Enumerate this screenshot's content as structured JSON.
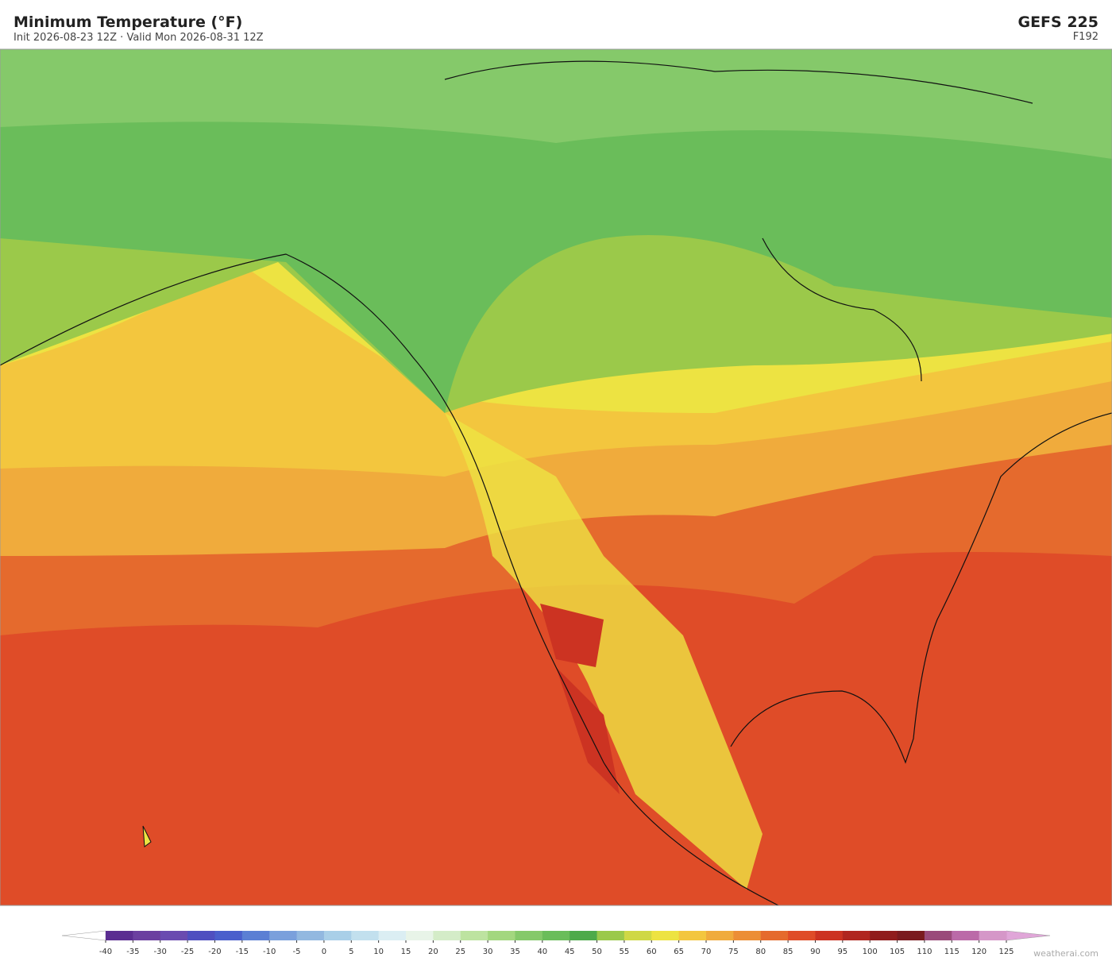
{
  "header": {
    "title": "Minimum Temperature  (°F)",
    "subtitle": "Init 2026-08-23 12Z  ·  Valid Mon 2026-08-31 12Z",
    "model": "GEFS  225",
    "forecast_hour": "F192"
  },
  "colorbar": {
    "ticks": [
      -40,
      -35,
      -30,
      -25,
      -20,
      -15,
      -10,
      -5,
      0,
      5,
      10,
      15,
      20,
      25,
      30,
      35,
      40,
      45,
      50,
      55,
      60,
      65,
      70,
      75,
      80,
      85,
      90,
      95,
      100,
      105,
      110,
      115,
      120,
      125
    ],
    "colors": [
      "#5b2d91",
      "#6b3fa0",
      "#6a4bb0",
      "#4f4fc0",
      "#4a5fcc",
      "#5b7fd4",
      "#7aa0dc",
      "#92b8e0",
      "#a9cfe8",
      "#c2e0ee",
      "#dbeef3",
      "#e8f4e8",
      "#d4ecc8",
      "#bde3a0",
      "#a3d77f",
      "#85c96a",
      "#6abd5a",
      "#4eaa4a",
      "#9bc94a",
      "#cfd845",
      "#ede342",
      "#f3c63e",
      "#f0ab3c",
      "#ec8e35",
      "#e56a2d",
      "#df4c28",
      "#cc3322",
      "#b02620",
      "#901c1c",
      "#7a1a1e",
      "#9a4a7a",
      "#bb6aa8",
      "#d597c8"
    ],
    "under_color": "#ffffff",
    "over_color": "#e0a6d8"
  },
  "footer": {
    "credit": "weatherai.com"
  }
}
